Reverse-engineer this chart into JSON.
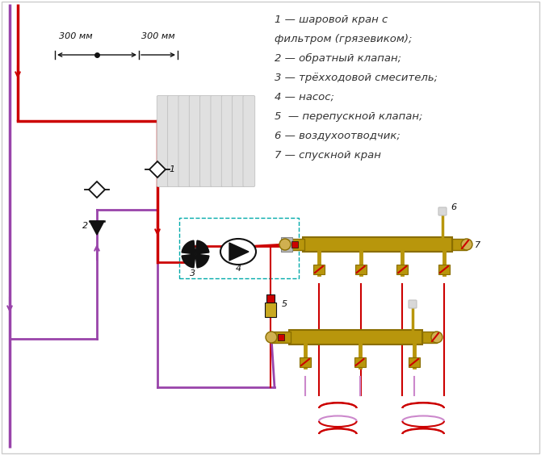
{
  "legend_lines": [
    "1 — шаровой кран с",
    "фильтром (грязевиком);",
    "2 — обратный клапан;",
    "3 — трёхходовой смеситель;",
    "4 — насос;",
    "5  — перепускной клапан;",
    "6 — воздухоотводчик;",
    "7 — спускной кран"
  ],
  "RED": "#cc0000",
  "LPURPLE": "#cc88cc",
  "PURPLE": "#9944aa",
  "BRASS": "#b8960c",
  "BRASS2": "#8a6e00",
  "BLACK": "#111111",
  "GRAY": "#c0c0c0",
  "LGRAY": "#e0e0e0",
  "WHITE": "#ffffff",
  "TEAL": "#00aaaa",
  "DARKRED": "#990000"
}
